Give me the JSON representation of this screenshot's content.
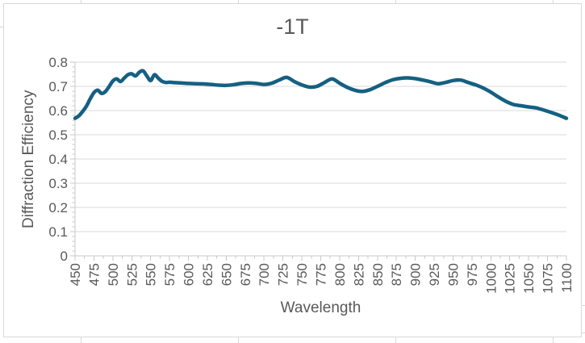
{
  "window": {
    "background": "#ffffff",
    "chart_border_color": "#D9D9D9"
  },
  "chart_data": {
    "type": "line",
    "title": "-1T",
    "xlabel": "Wavelength",
    "ylabel": "Diffraction Efficiency",
    "xlim": [
      450,
      1100
    ],
    "ylim": [
      0,
      0.8
    ],
    "x_major_step": 25,
    "x_minor_step": 12.5,
    "y_major_step": 0.1,
    "y_minor_step": 0.02,
    "grid": true,
    "legend": "none",
    "x_tick_labels": [
      "450",
      "475",
      "500",
      "525",
      "550",
      "575",
      "600",
      "625",
      "650",
      "675",
      "700",
      "725",
      "750",
      "775",
      "800",
      "825",
      "850",
      "875",
      "900",
      "925",
      "950",
      "975",
      "1000",
      "1025",
      "1050",
      "1075",
      "1100"
    ],
    "y_tick_labels": [
      "0",
      "0.1",
      "0.2",
      "0.3",
      "0.4",
      "0.5",
      "0.6",
      "0.7",
      "0.8"
    ],
    "colors": {
      "series": "#156082",
      "text": "#595959",
      "gridline": "#D9D9D9",
      "axis": "#C8C8C8"
    },
    "series": [
      {
        "name": "-1T",
        "smooth": true,
        "x": [
          450,
          455,
          460,
          465,
          470,
          475,
          480,
          485,
          490,
          495,
          500,
          505,
          510,
          515,
          520,
          525,
          530,
          535,
          540,
          545,
          550,
          555,
          560,
          565,
          570,
          575,
          580,
          590,
          600,
          610,
          620,
          630,
          640,
          650,
          660,
          670,
          680,
          690,
          700,
          710,
          720,
          730,
          740,
          750,
          760,
          770,
          780,
          790,
          800,
          810,
          820,
          830,
          840,
          850,
          860,
          870,
          880,
          890,
          900,
          910,
          920,
          930,
          940,
          950,
          960,
          970,
          980,
          990,
          1000,
          1010,
          1020,
          1030,
          1040,
          1050,
          1060,
          1070,
          1080,
          1090,
          1100
        ],
        "y": [
          0.568,
          0.578,
          0.596,
          0.618,
          0.648,
          0.674,
          0.684,
          0.671,
          0.678,
          0.699,
          0.722,
          0.731,
          0.72,
          0.734,
          0.748,
          0.752,
          0.743,
          0.758,
          0.764,
          0.743,
          0.724,
          0.748,
          0.734,
          0.721,
          0.716,
          0.717,
          0.716,
          0.714,
          0.712,
          0.711,
          0.71,
          0.708,
          0.705,
          0.704,
          0.707,
          0.712,
          0.714,
          0.712,
          0.708,
          0.713,
          0.726,
          0.737,
          0.72,
          0.706,
          0.697,
          0.7,
          0.716,
          0.731,
          0.713,
          0.696,
          0.684,
          0.679,
          0.686,
          0.7,
          0.715,
          0.727,
          0.733,
          0.735,
          0.732,
          0.726,
          0.719,
          0.711,
          0.716,
          0.724,
          0.726,
          0.716,
          0.706,
          0.693,
          0.676,
          0.656,
          0.638,
          0.625,
          0.62,
          0.615,
          0.611,
          0.602,
          0.592,
          0.581,
          0.568
        ]
      }
    ]
  }
}
